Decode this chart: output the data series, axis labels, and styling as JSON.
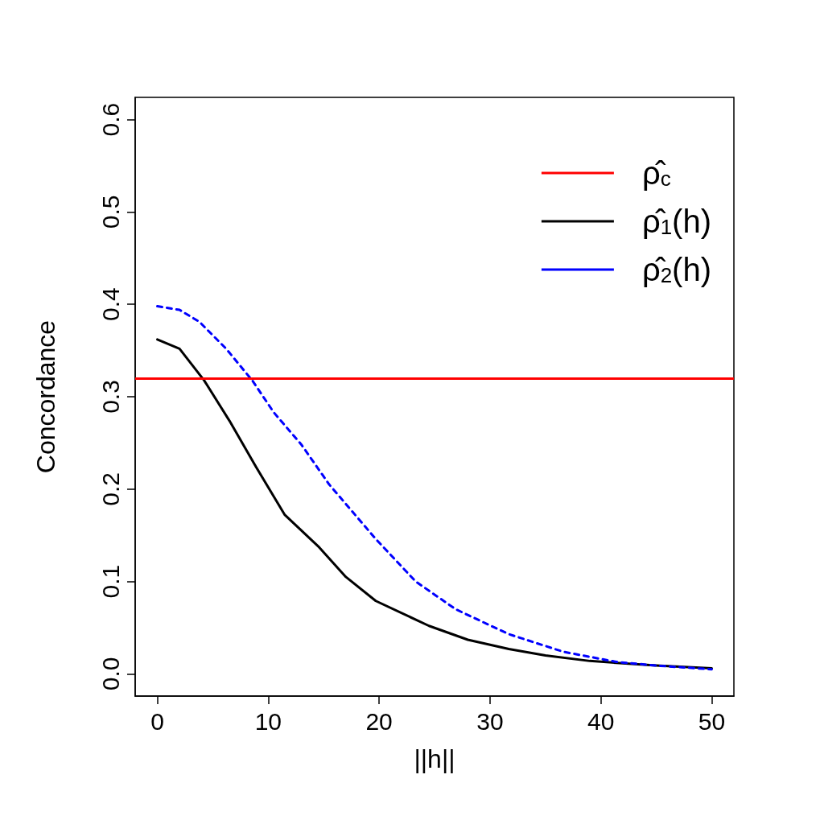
{
  "chart_data": {
    "type": "line",
    "xlabel": "||h||",
    "ylabel": "Concordance",
    "xlim": [
      -2,
      52
    ],
    "xticks": [
      0,
      10,
      20,
      30,
      40,
      50
    ],
    "ylim": [
      -0.024,
      0.624
    ],
    "yticks": [
      {
        "value": 0,
        "label": "0.0"
      },
      0.1,
      0.2,
      0.3,
      0.4,
      0.5,
      0.6
    ],
    "grid": false,
    "legend": "top right",
    "marker": "none",
    "ref_lines": [
      {
        "axis": "y",
        "value": 0.318,
        "label": "ρ̂$_{c}$",
        "color": "#ff0000",
        "line_style": "solid"
      }
    ],
    "series": [
      {
        "name": "ρ̂$_{1}$(h)",
        "color": "#000000",
        "line_style": "solid",
        "x": [
          0,
          2,
          4.2,
          6.5,
          8.9,
          11.5,
          14.6,
          17,
          19.7,
          24.5,
          28,
          31.7,
          35,
          39,
          45,
          50
        ],
        "values": [
          0.362,
          0.352,
          0.318,
          0.274,
          0.224,
          0.172,
          0.137,
          0.105,
          0.079,
          0.052,
          0.037,
          0.027,
          0.02,
          0.014,
          0.009,
          0.006
        ]
      },
      {
        "name": "ρ̂$_{2}$(h)",
        "color": "#0000ff",
        "line_style": "dashed",
        "x": [
          0,
          2,
          3.8,
          6.2,
          8.6,
          10.5,
          13,
          15.5,
          19.7,
          23.3,
          26.9,
          31.7,
          36.6,
          41.4,
          45,
          50
        ],
        "values": [
          0.398,
          0.394,
          0.381,
          0.352,
          0.317,
          0.283,
          0.248,
          0.205,
          0.146,
          0.1,
          0.07,
          0.043,
          0.024,
          0.013,
          0.009,
          0.005
        ]
      }
    ]
  }
}
